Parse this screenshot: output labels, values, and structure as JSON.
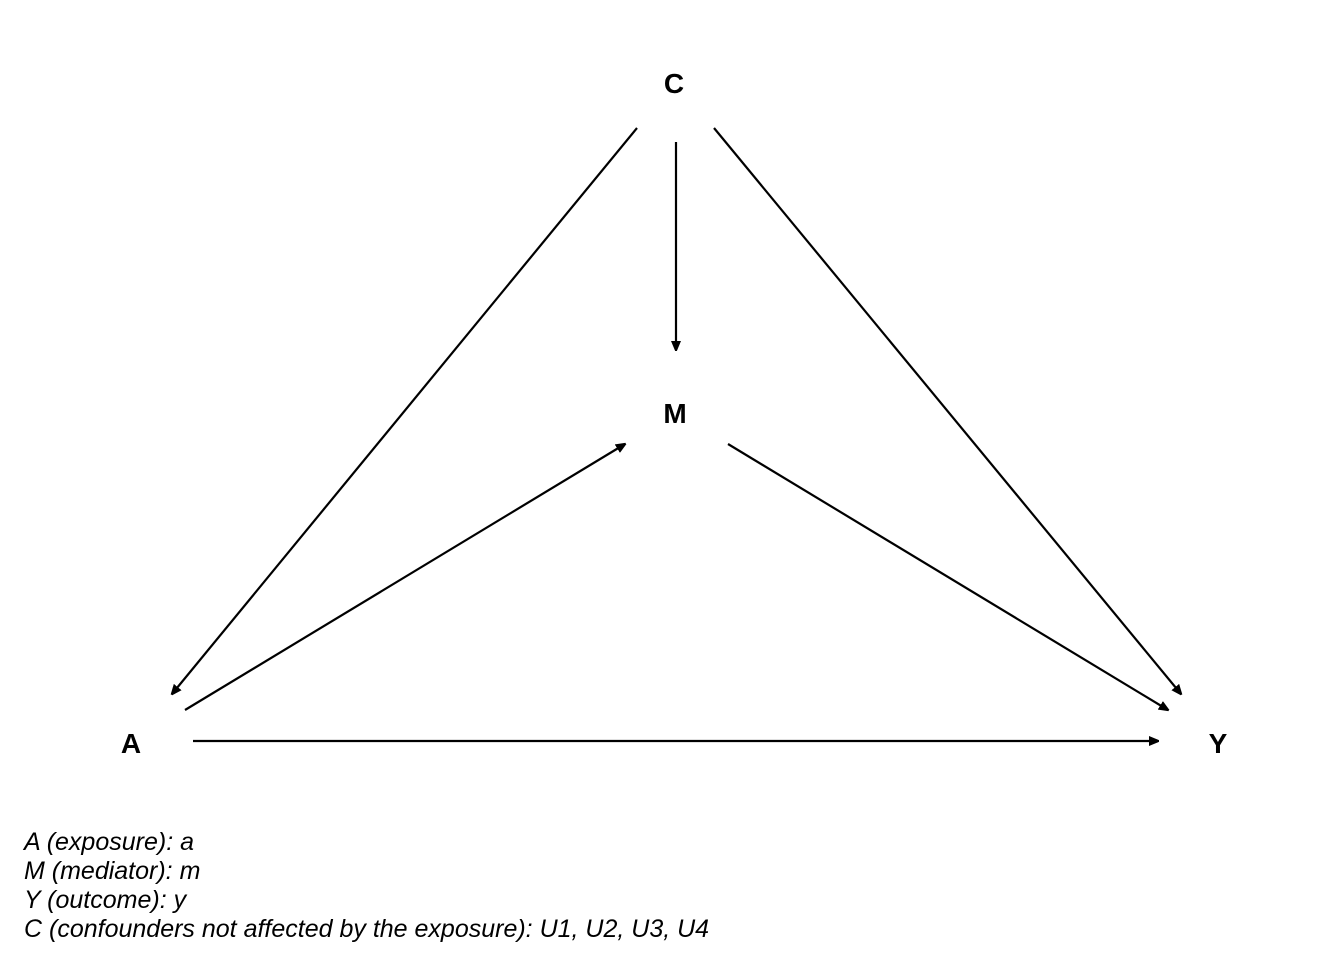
{
  "nodes": {
    "C": {
      "label": "C"
    },
    "M": {
      "label": "M"
    },
    "A": {
      "label": "A"
    },
    "Y": {
      "label": "Y"
    }
  },
  "edges": [
    {
      "from": "C",
      "to": "A"
    },
    {
      "from": "C",
      "to": "M"
    },
    {
      "from": "C",
      "to": "Y"
    },
    {
      "from": "A",
      "to": "M"
    },
    {
      "from": "M",
      "to": "Y"
    },
    {
      "from": "A",
      "to": "Y"
    }
  ],
  "legend": [
    "A (exposure): a",
    "M (mediator): m",
    "Y (outcome): y",
    "C (confounders not affected by the exposure): U1, U2, U3, U4"
  ]
}
